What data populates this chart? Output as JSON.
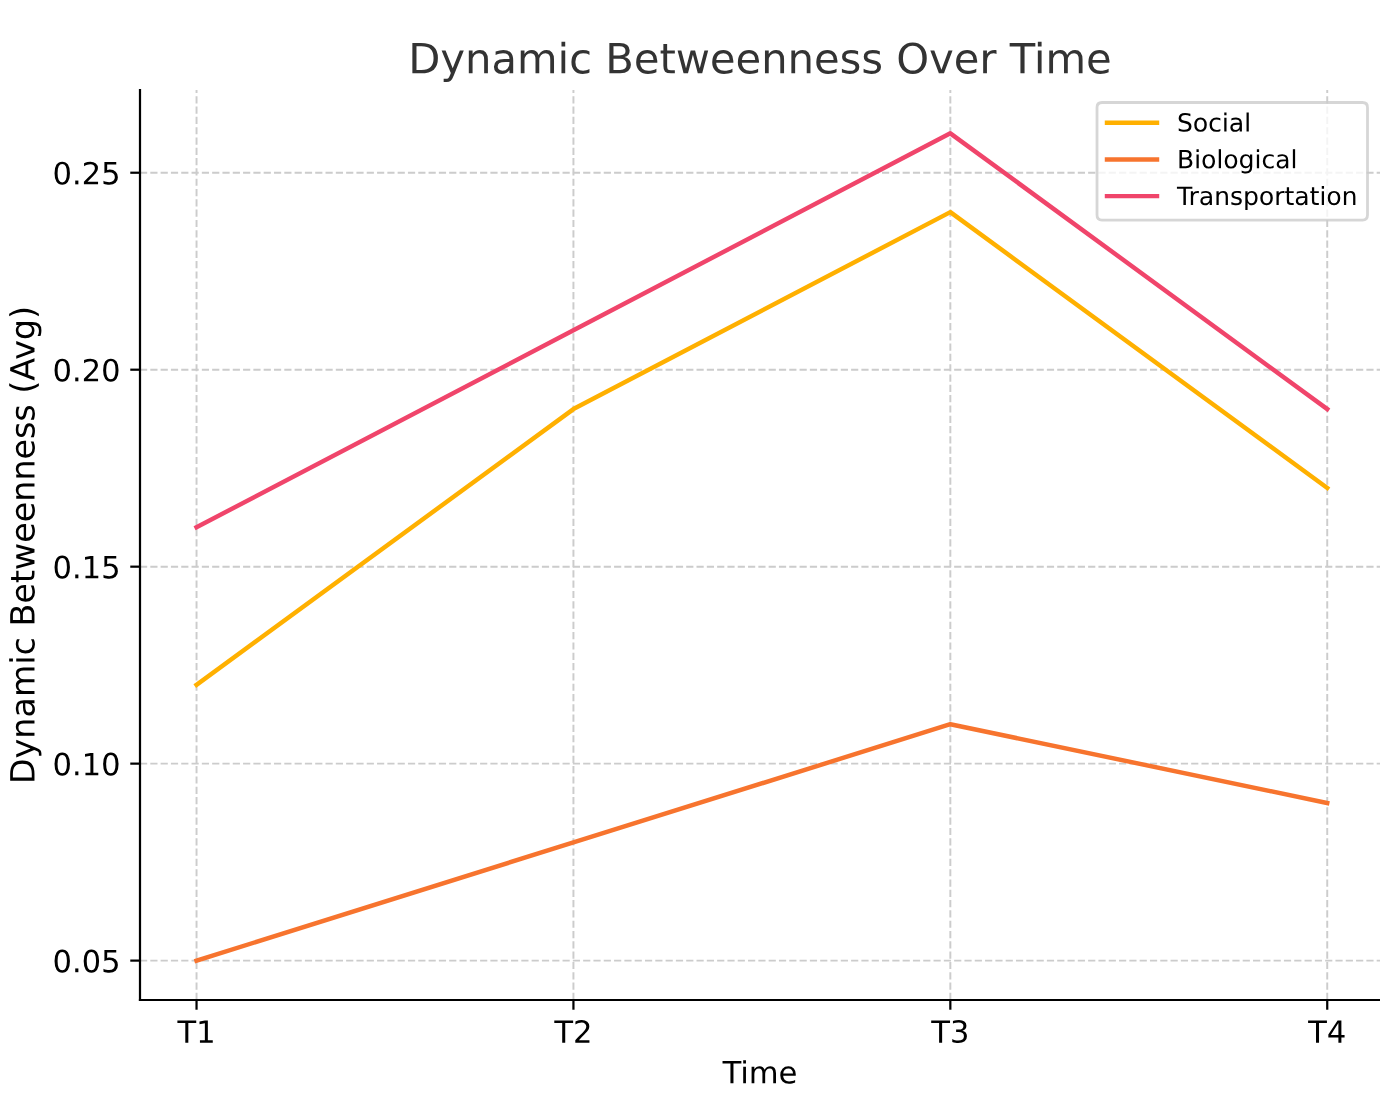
{
  "chart_data": {
    "type": "line",
    "title": "Dynamic Betweenness Over Time",
    "xlabel": "Time",
    "ylabel": "Dynamic Betweenness (Avg)",
    "categories": [
      "T1",
      "T2",
      "T3",
      "T4"
    ],
    "series": [
      {
        "name": "Social",
        "color": "#ffb000",
        "values": [
          0.12,
          0.19,
          0.24,
          0.17
        ]
      },
      {
        "name": "Biological",
        "color": "#f7742e",
        "values": [
          0.05,
          0.08,
          0.11,
          0.09
        ]
      },
      {
        "name": "Transportation",
        "color": "#f0456b",
        "values": [
          0.16,
          0.21,
          0.26,
          0.19
        ]
      }
    ],
    "ylim": [
      0.04,
      0.271
    ],
    "yticks": [
      0.05,
      {
        "value": 0.1,
        "label": "0.10"
      },
      0.15,
      {
        "value": 0.2,
        "label": "0.20"
      },
      0.25
    ],
    "grid": true,
    "legend": "top right",
    "marker": "none",
    "line_style": "solid"
  }
}
